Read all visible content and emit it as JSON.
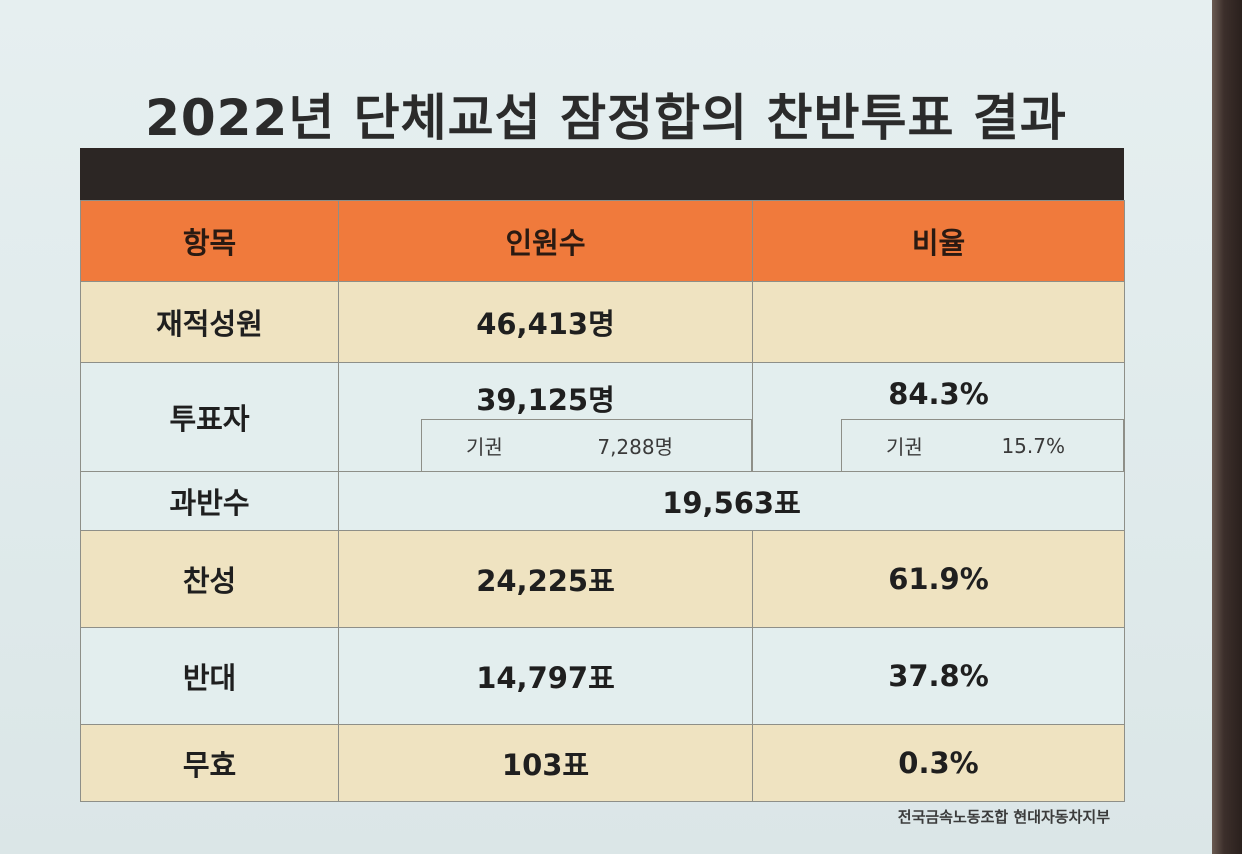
{
  "title": "2022년 단체교섭 잠정합의 찬반투표 결과",
  "headers": {
    "item": "항목",
    "count": "인원수",
    "ratio": "비율"
  },
  "rows": {
    "members": {
      "label": "재적성원",
      "count": "46,413명",
      "ratio": ""
    },
    "voters": {
      "label": "투표자",
      "count": "39,125명",
      "ratio": "84.3%",
      "abstain_label": "기권",
      "abstain_count": "7,288명",
      "abstain_ratio_label": "기권",
      "abstain_ratio": "15.7%"
    },
    "majority": {
      "label": "과반수",
      "count": "19,563표"
    },
    "yes": {
      "label": "찬성",
      "count": "24,225표",
      "ratio": "61.9%"
    },
    "no": {
      "label": "반대",
      "count": "14,797표",
      "ratio": "37.8%"
    },
    "void": {
      "label": "무효",
      "count": "103표",
      "ratio": "0.3%"
    }
  },
  "footer": "전국금속노동조합 현대자동차지부",
  "colors": {
    "header_orange": "#f07a3c",
    "top_bar": "#2c2624",
    "row_cream": "#efe3c1",
    "row_light": "#e3eeee"
  }
}
